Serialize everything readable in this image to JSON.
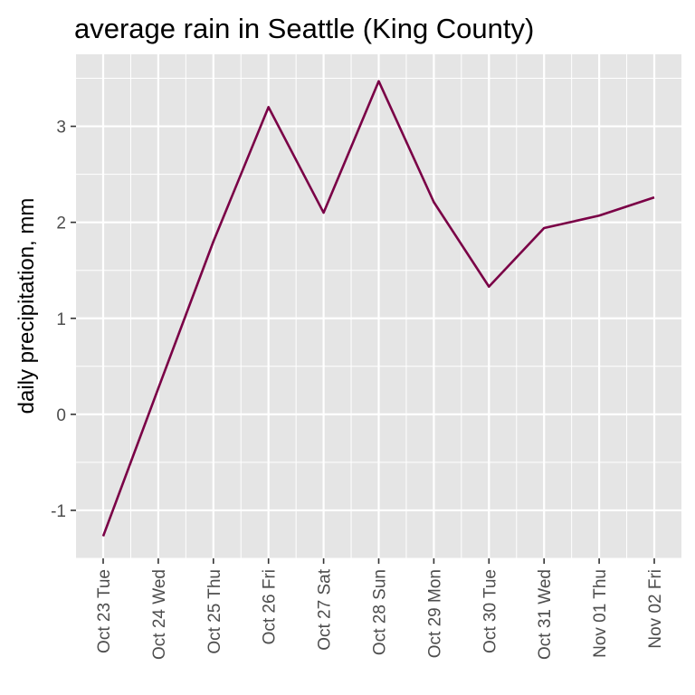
{
  "chart_data": {
    "type": "line",
    "title": "average rain in Seattle (King County)",
    "xlabel": "",
    "ylabel": "daily precipitation, mm",
    "categories": [
      "Oct 23 Tue",
      "Oct 24 Wed",
      "Oct 25 Thu",
      "Oct 26 Fri",
      "Oct 27 Sat",
      "Oct 28 Sun",
      "Oct 29 Mon",
      "Oct 30 Tue",
      "Oct 31 Wed",
      "Nov 01 Thu",
      "Nov 02 Fri"
    ],
    "series": [
      {
        "values": [
          -1.27,
          0.27,
          1.8,
          3.2,
          2.1,
          3.47,
          2.21,
          1.33,
          1.94,
          2.07,
          2.26
        ],
        "color": "#7a0046"
      }
    ],
    "ylim": [
      -1.5,
      3.75
    ],
    "yticks": [
      -1,
      0,
      1,
      2,
      3
    ],
    "ytick_labels": [
      "-1",
      "0",
      "1",
      "2",
      "3"
    ],
    "grid": true,
    "panel_color": "#e5e5e5",
    "grid_color": "#ffffff"
  }
}
